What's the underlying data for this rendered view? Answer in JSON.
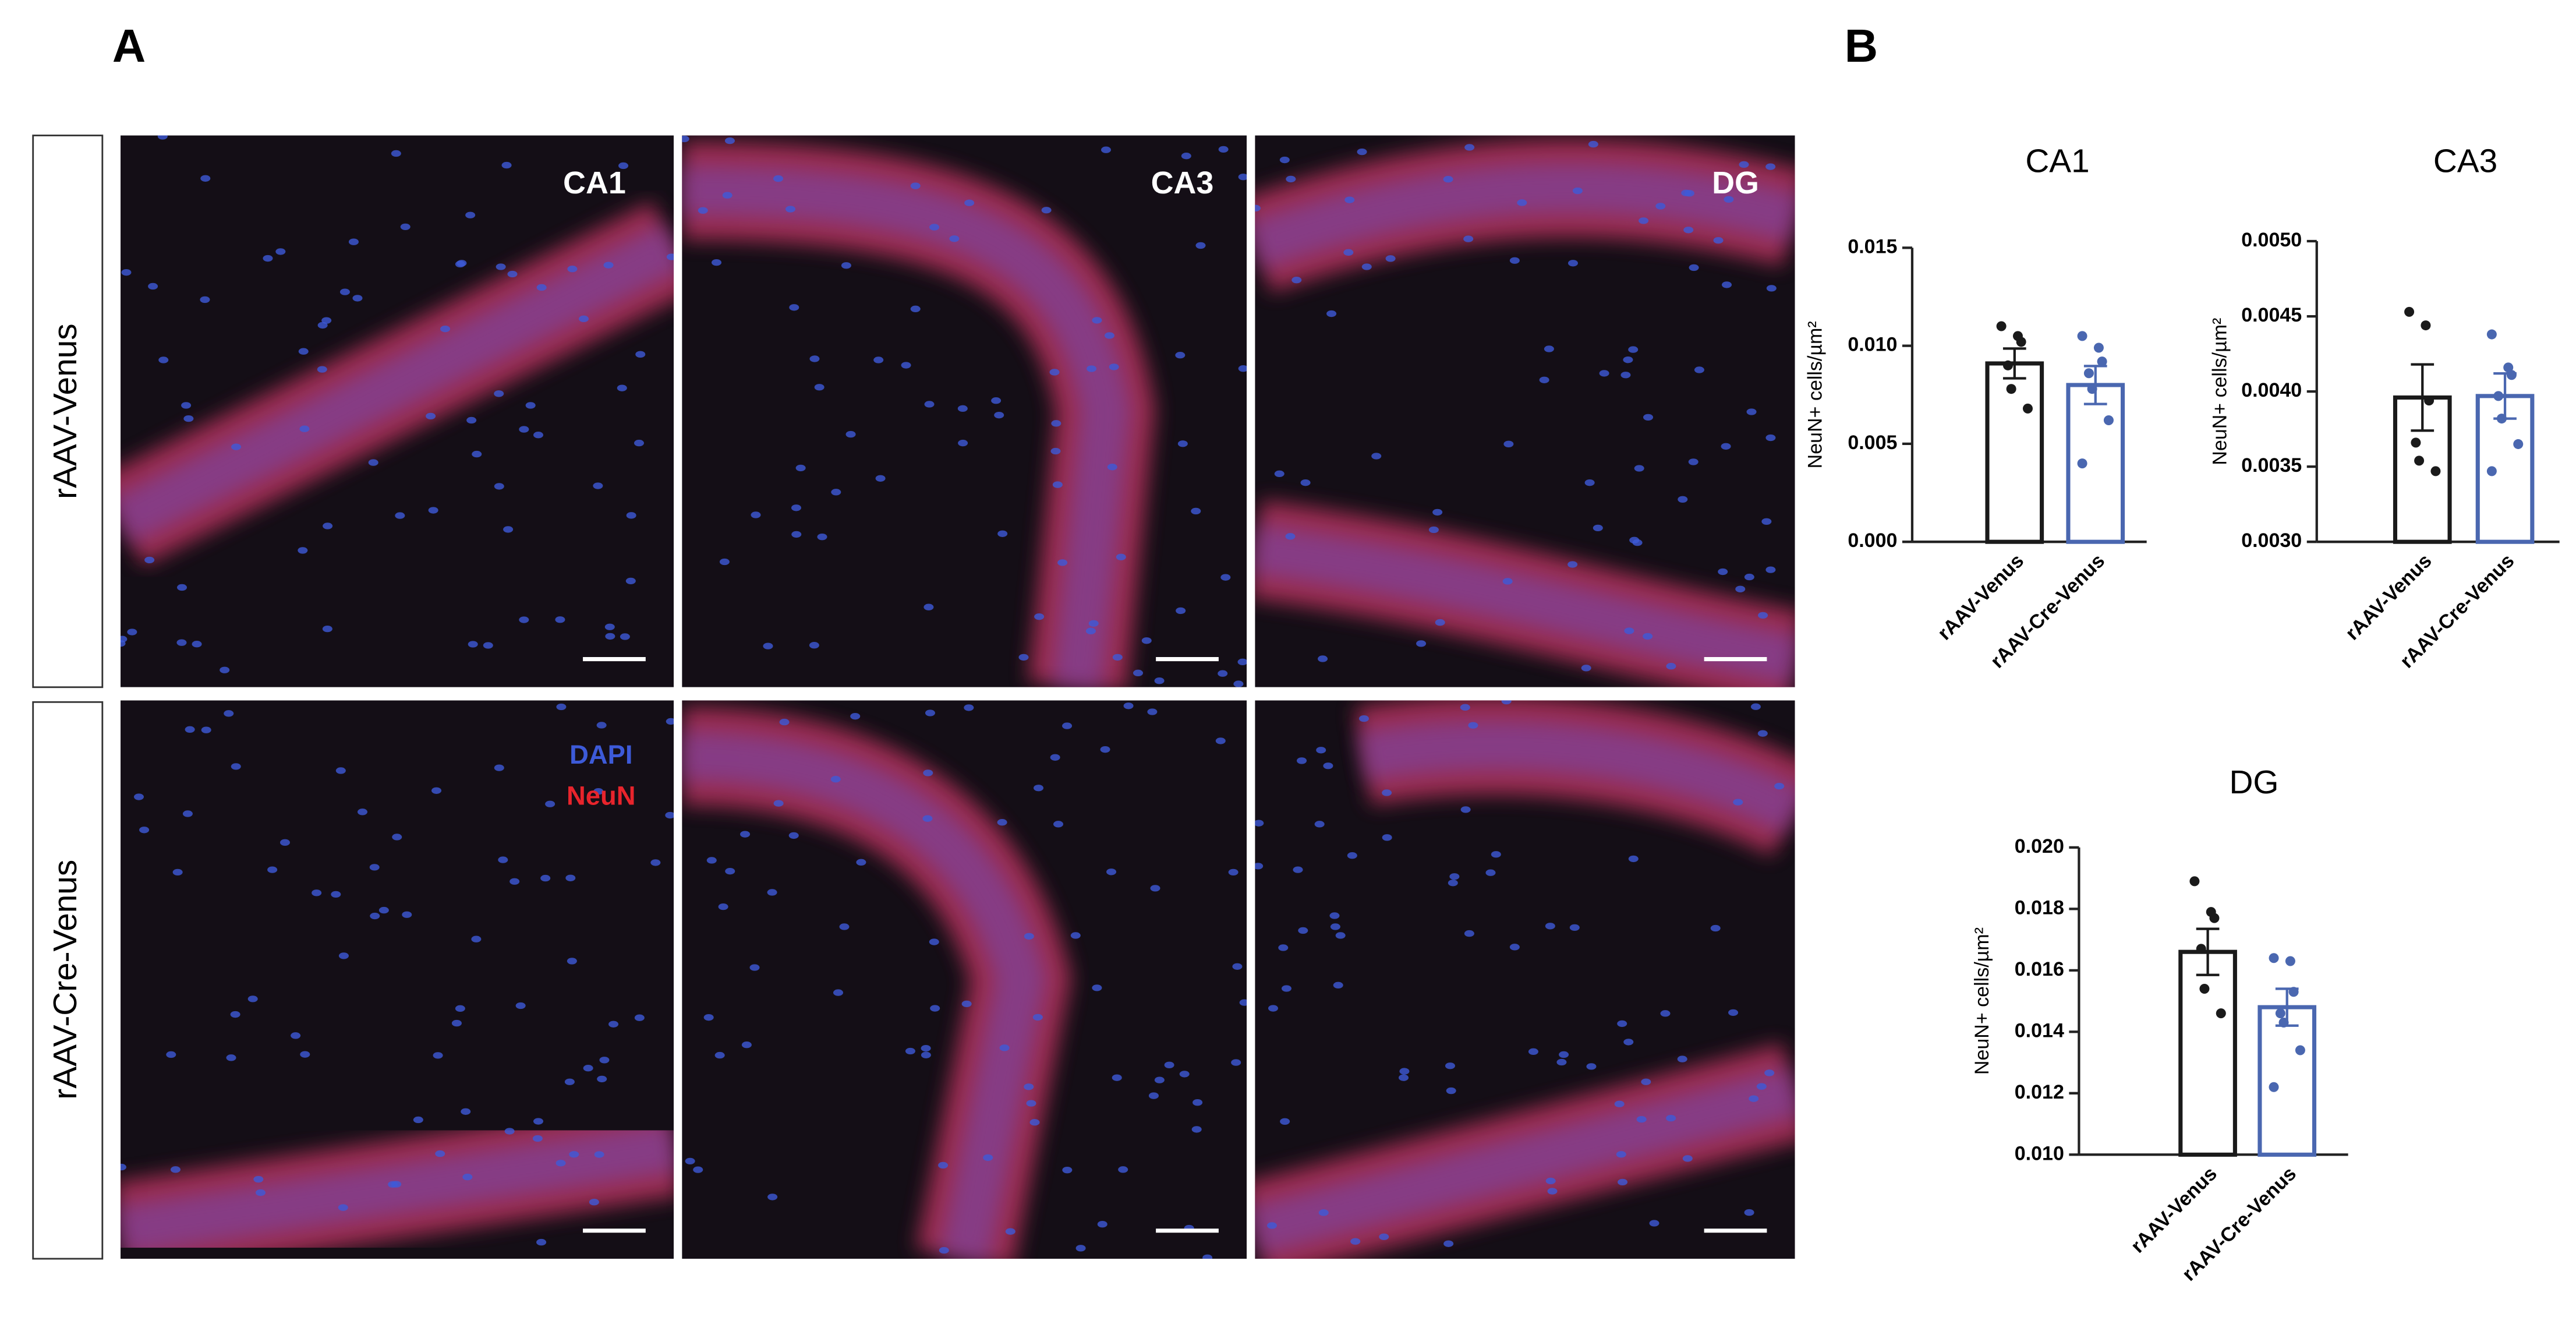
{
  "panel_labels": [
    "A",
    "B"
  ],
  "images": {
    "row_labels": [
      "rAAV-Venus",
      "rAAV-Cre-Venus"
    ],
    "column_labels": [
      "CA1",
      "CA3",
      "DG"
    ],
    "legend": [
      {
        "name": "DAPI",
        "color": "#3d5ad8"
      },
      {
        "name": "NeuN",
        "color": "#e8242c"
      }
    ]
  },
  "chart_data": [
    {
      "type": "bar",
      "title": "CA1",
      "ylabel": "NeuN+ cells/µm²",
      "categories": [
        "rAAV-Venus",
        "rAAV-Cre-Venus"
      ],
      "values": [
        0.0091,
        0.008
      ],
      "errors": [
        0.00076,
        0.00097
      ],
      "colors": [
        "#1a1a1a",
        "#4a67b0"
      ],
      "points": [
        [
          0.011,
          0.0105,
          0.0102,
          0.009,
          0.0078,
          0.0068
        ],
        [
          0.0105,
          0.0099,
          0.0092,
          0.0086,
          0.0078,
          0.0062,
          0.004
        ]
      ],
      "ylim": [
        0,
        0.015
      ],
      "yticks": [
        {
          "value": 0,
          "label": "0.000"
        },
        {
          "value": 0.005,
          "label": "0.005"
        },
        {
          "value": 0.01,
          "label": "0.010"
        },
        {
          "value": 0.015,
          "label": "0.015"
        }
      ]
    },
    {
      "type": "bar",
      "title": "CA3",
      "ylabel": "NeuN+ cells/µm²",
      "categories": [
        "rAAV-Venus",
        "rAAV-Cre-Venus"
      ],
      "values": [
        0.00396,
        0.00397
      ],
      "errors": [
        0.00022,
        0.00015
      ],
      "colors": [
        "#1a1a1a",
        "#4a67b0"
      ],
      "points": [
        [
          0.00453,
          0.00444,
          0.00394,
          0.00366,
          0.00354,
          0.00347
        ],
        [
          0.00438,
          0.00416,
          0.00411,
          0.00397,
          0.00382,
          0.00365,
          0.00347
        ]
      ],
      "ylim": [
        0.003,
        0.005
      ],
      "yticks": [
        {
          "value": 0.003,
          "label": "0.0030"
        },
        {
          "value": 0.0035,
          "label": "0.0035"
        },
        {
          "value": 0.004,
          "label": "0.0040"
        },
        {
          "value": 0.0045,
          "label": "0.0045"
        },
        {
          "value": 0.005,
          "label": "0.0050"
        }
      ]
    },
    {
      "type": "bar",
      "title": "DG",
      "ylabel": "NeuN+ cells/µm²",
      "categories": [
        "rAAV-Venus",
        "rAAV-Cre-Venus"
      ],
      "values": [
        0.0166,
        0.0148
      ],
      "errors": [
        0.00075,
        0.0006
      ],
      "colors": [
        "#1a1a1a",
        "#4a67b0"
      ],
      "points": [
        [
          0.0189,
          0.0179,
          0.0177,
          0.0167,
          0.0154,
          0.0146
        ],
        [
          0.0164,
          0.0163,
          0.0153,
          0.0146,
          0.0143,
          0.0134,
          0.0122
        ]
      ],
      "ylim": [
        0.01,
        0.02
      ],
      "yticks": [
        {
          "value": 0.01,
          "label": "0.010"
        },
        {
          "value": 0.012,
          "label": "0.012"
        },
        {
          "value": 0.014,
          "label": "0.014"
        },
        {
          "value": 0.016,
          "label": "0.016"
        },
        {
          "value": 0.018,
          "label": "0.018"
        },
        {
          "value": 0.02,
          "label": "0.020"
        }
      ]
    }
  ]
}
